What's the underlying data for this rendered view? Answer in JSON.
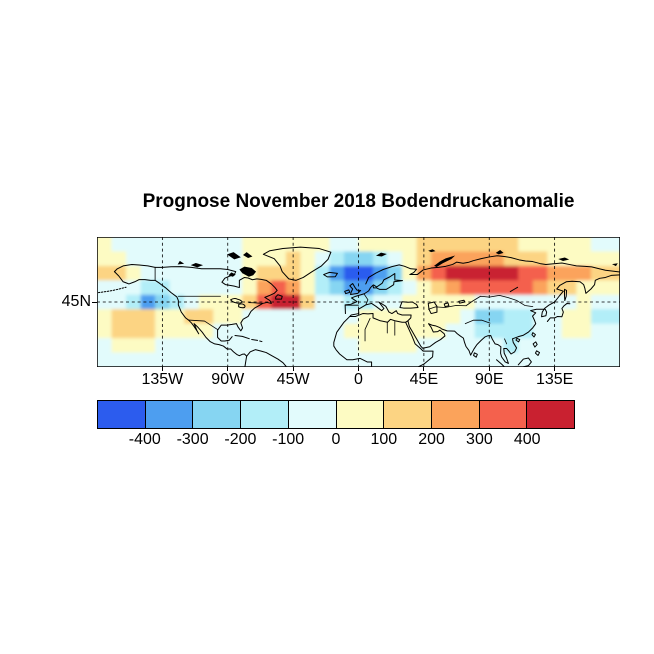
{
  "title": "Prognose November 2018 Bodendruckanomalie",
  "axes": {
    "x_ticks": [
      {
        "label": "135W",
        "lon": -135
      },
      {
        "label": "90W",
        "lon": -90
      },
      {
        "label": "45W",
        "lon": -45
      },
      {
        "label": "0",
        "lon": 0
      },
      {
        "label": "45E",
        "lon": 45
      },
      {
        "label": "90E",
        "lon": 90
      },
      {
        "label": "135E",
        "lon": 135
      }
    ],
    "y_ticks": [
      {
        "label": "45N",
        "lat": 45
      }
    ]
  },
  "colorbar": {
    "tick_labels": [
      "-400",
      "-300",
      "-200",
      "-100",
      "0",
      "100",
      "200",
      "300",
      "400"
    ]
  },
  "chart_data": {
    "type": "heatmap",
    "title": "Prognose November 2018 Bodendruckanomalie",
    "variable": "Bodendruckanomalie",
    "forecast_month": "November 2018",
    "projection": "equirectangular",
    "lon_range": [
      -180,
      180
    ],
    "lat_range": [
      0,
      90
    ],
    "grid_cell_degrees": 10,
    "contour_levels": [
      -400,
      -300,
      -200,
      -100,
      0,
      100,
      200,
      300,
      400
    ],
    "palette": [
      "#2c5cee",
      "#4d9ef0",
      "#86d5f2",
      "#b2eef8",
      "#e2fbfc",
      "#fdfbc3",
      "#fcd483",
      "#fba35b",
      "#f4614d",
      "#c92130"
    ],
    "grid_rows_north_to_south": [
      "544444444455555544555566666665555544",
      "554444444455565432234567777766655555",
      "665444444456665310012578999998877766",
      "444334444457875321123456788888766555",
      "443123455568996443344555554444444544",
      "566655665544444444555555542233445533",
      "566655554444444445555555443333445544",
      "455544444444444444555544444434444444",
      "444444444444444444444444444444444444"
    ],
    "gridlines": {
      "lon_step_deg": 45,
      "lat_line_deg": 45,
      "style": "dashed"
    },
    "legend_position": "bottom"
  }
}
